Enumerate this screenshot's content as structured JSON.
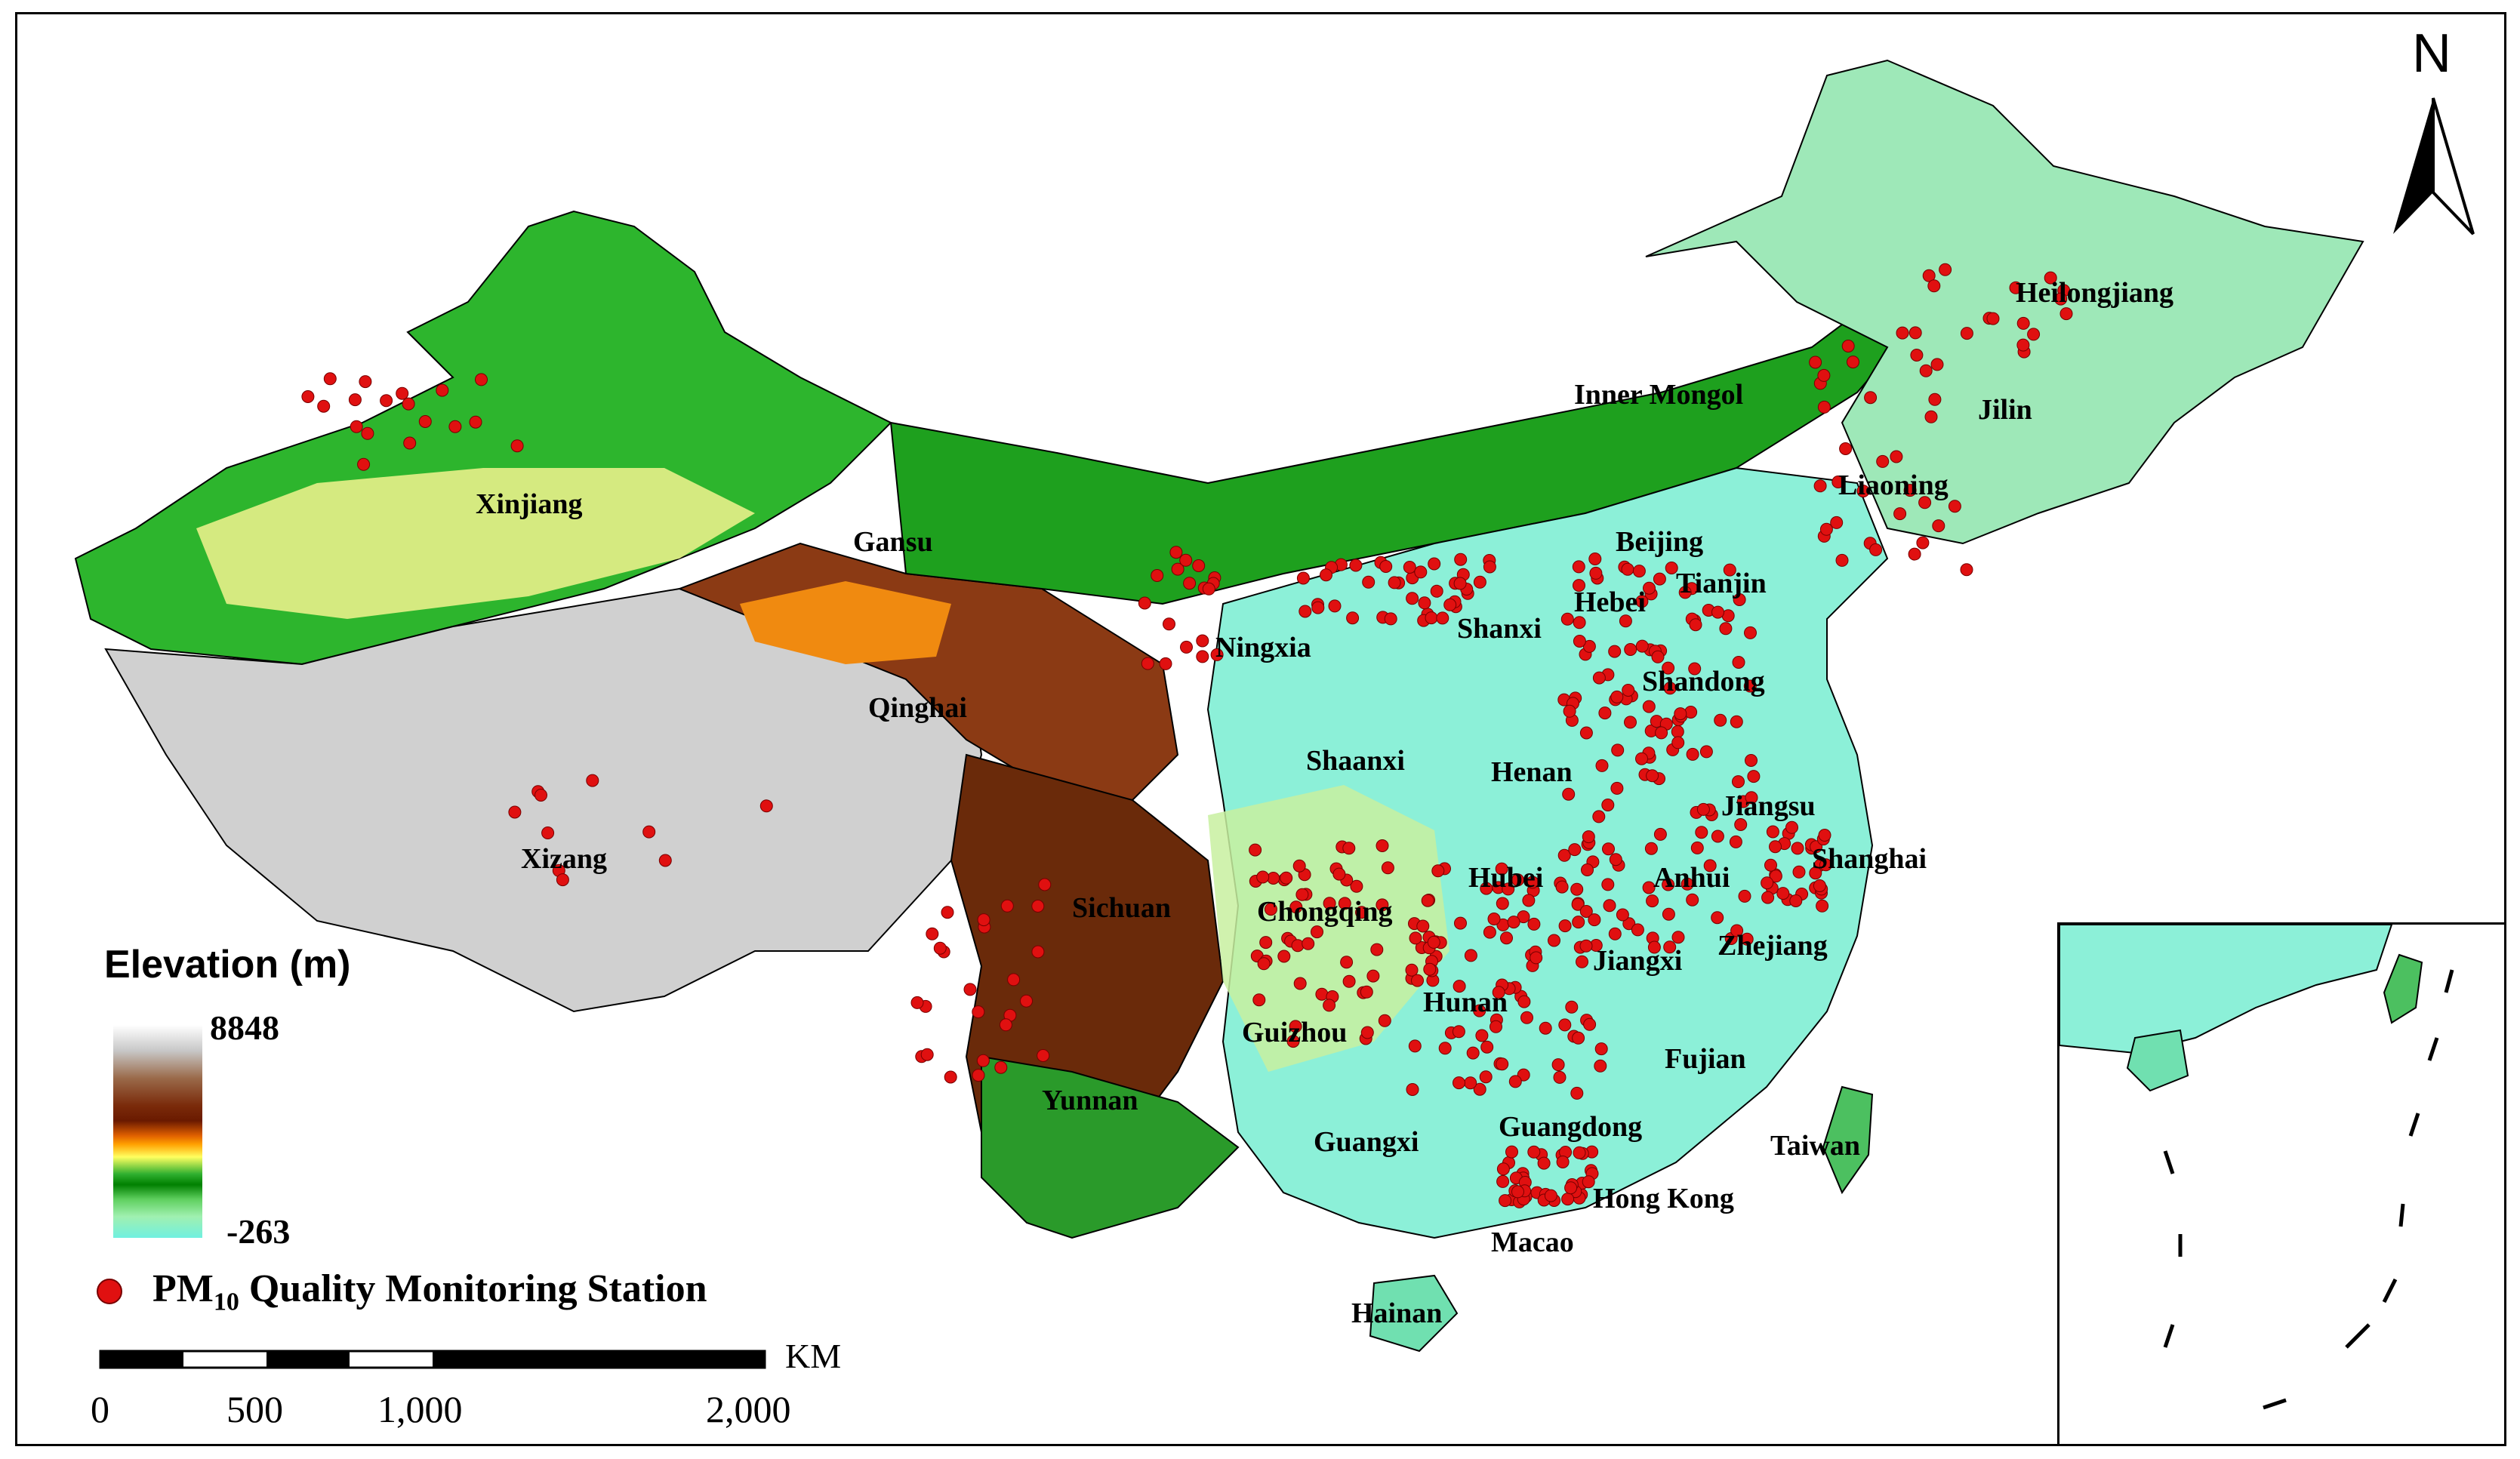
{
  "legend": {
    "title": "Elevation (m)",
    "max_label": "8848",
    "min_label": "-263",
    "station_label_pre": "PM",
    "station_label_sub": "10",
    "station_label_post": " Quality Monitoring Station"
  },
  "north_arrow": {
    "label": "N"
  },
  "scale_bar": {
    "unit": "KM",
    "ticks": [
      "0",
      "500",
      "1,000",
      "2,000"
    ]
  },
  "provinces": [
    {
      "name": "Xinjiang"
    },
    {
      "name": "Gansu"
    },
    {
      "name": "Qinghai"
    },
    {
      "name": "Xizang"
    },
    {
      "name": "Inner Mongol"
    },
    {
      "name": "Heilongjiang"
    },
    {
      "name": "Jilin"
    },
    {
      "name": "Liaoning"
    },
    {
      "name": "Beijing"
    },
    {
      "name": "Tianjin"
    },
    {
      "name": "Hebei"
    },
    {
      "name": "Shanxi"
    },
    {
      "name": "Shandong"
    },
    {
      "name": "Ningxia"
    },
    {
      "name": "Shaanxi"
    },
    {
      "name": "Henan"
    },
    {
      "name": "Jiangsu"
    },
    {
      "name": "Shanghai"
    },
    {
      "name": "Anhui"
    },
    {
      "name": "Hubei"
    },
    {
      "name": "Sichuan"
    },
    {
      "name": "Chongqing"
    },
    {
      "name": "Zhejiang"
    },
    {
      "name": "Jiangxi"
    },
    {
      "name": "Hunan"
    },
    {
      "name": "Guizhou"
    },
    {
      "name": "Yunnan"
    },
    {
      "name": "Fujian"
    },
    {
      "name": "Guangxi"
    },
    {
      "name": "Guangdong"
    },
    {
      "name": "Taiwan"
    },
    {
      "name": "Hong Kong"
    },
    {
      "name": "Macao"
    },
    {
      "name": "Hainan"
    }
  ],
  "colors": {
    "station": "#e01010",
    "high_elevation": "#6a1a00",
    "low_elevation": "#70f0e0",
    "mid_green": "#008000"
  }
}
